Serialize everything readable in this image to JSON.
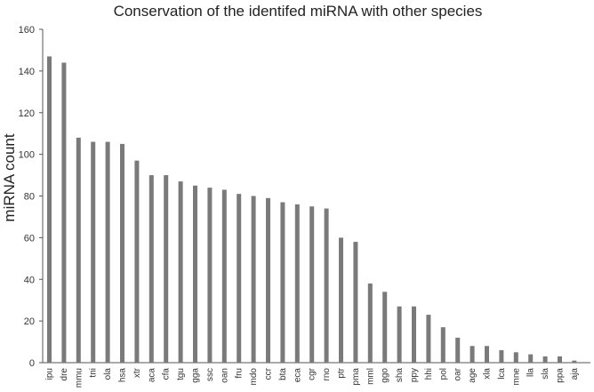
{
  "chart_data": {
    "type": "bar",
    "title": "Conservation of the identifed miRNA with other species",
    "xlabel": "",
    "ylabel": "miRNA count",
    "ylim": [
      0,
      160
    ],
    "yticks": [
      0,
      20,
      40,
      60,
      80,
      100,
      120,
      140,
      160
    ],
    "grid": false,
    "legend": "none",
    "bar_color": "#7a7a7a",
    "categories": [
      "ipu",
      "dre",
      "mmu",
      "tni",
      "ola",
      "hsa",
      "xtr",
      "aca",
      "cfa",
      "tgu",
      "gga",
      "ssc",
      "oan",
      "fru",
      "mdo",
      "ccr",
      "bta",
      "eca",
      "cgr",
      "rno",
      "ptr",
      "pma",
      "mml",
      "ggo",
      "sha",
      "ppy",
      "hhi",
      "pol",
      "oar",
      "age",
      "xla",
      "lca",
      "mne",
      "lla",
      "sla",
      "ppa",
      "aja"
    ],
    "values": [
      147,
      144,
      108,
      106,
      106,
      105,
      97,
      90,
      90,
      87,
      85,
      84,
      83,
      81,
      80,
      79,
      77,
      76,
      75,
      74,
      60,
      58,
      38,
      34,
      27,
      27,
      23,
      17,
      12,
      8,
      8,
      6,
      5,
      4,
      3,
      3,
      1
    ]
  }
}
